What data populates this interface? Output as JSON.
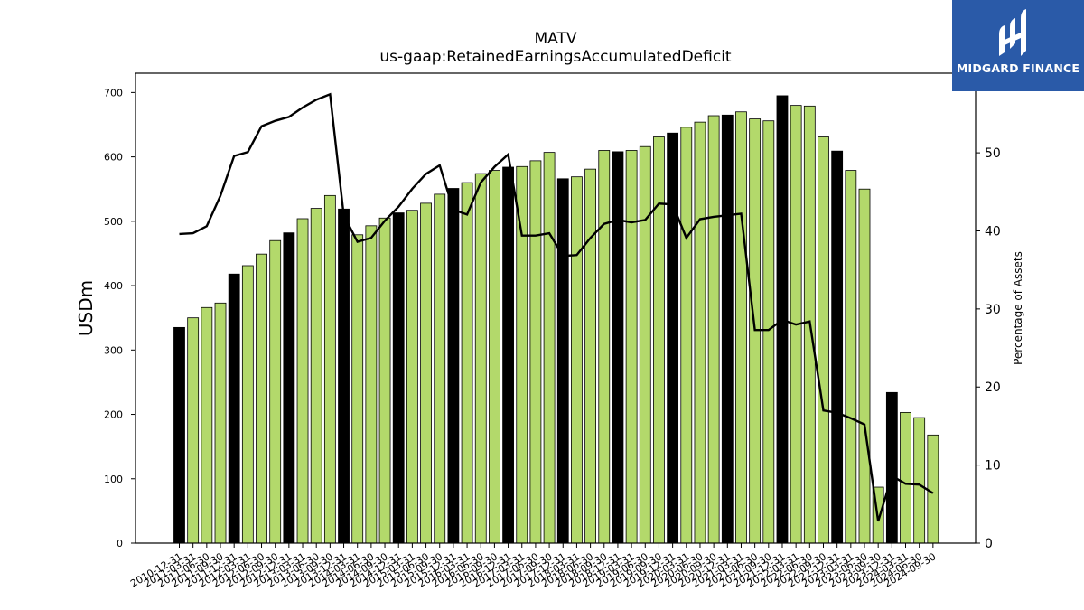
{
  "chart_data": {
    "type": "bar",
    "title": "MATV",
    "subtitle": "us-gaap:RetainedEarningsAccumulatedDeficit",
    "ylabel": "USDm",
    "y2label": "Percentage of Assets",
    "ylim": [
      0,
      730
    ],
    "y2lim": [
      0,
      60.2
    ],
    "yticks": [
      0,
      100,
      200,
      300,
      400,
      500,
      600,
      700
    ],
    "y2ticks": [
      0,
      10,
      20,
      30,
      40,
      50
    ],
    "categories": [
      "2010-12-31",
      "2011-03-31",
      "2011-06-30",
      "2011-09-30",
      "2011-12-31",
      "2012-03-31",
      "2012-06-30",
      "2012-09-30",
      "2012-12-31",
      "2013-03-31",
      "2013-06-30",
      "2013-09-30",
      "2013-12-31",
      "2014-03-31",
      "2014-06-30",
      "2014-09-30",
      "2014-12-31",
      "2015-03-31",
      "2015-06-30",
      "2015-09-30",
      "2015-12-31",
      "2016-03-31",
      "2016-06-30",
      "2016-09-30",
      "2016-12-31",
      "2017-03-31",
      "2017-06-30",
      "2017-09-30",
      "2017-12-31",
      "2018-03-31",
      "2018-06-30",
      "2018-09-30",
      "2018-12-31",
      "2019-03-31",
      "2019-06-30",
      "2019-09-30",
      "2019-12-31",
      "2020-03-31",
      "2020-06-30",
      "2020-09-30",
      "2020-12-31",
      "2021-03-31",
      "2021-06-30",
      "2021-09-30",
      "2021-12-31",
      "2022-03-31",
      "2022-06-30",
      "2022-09-30",
      "2022-12-31",
      "2023-03-31",
      "2023-06-30",
      "2023-09-30",
      "2023-12-31",
      "2024-03-31",
      "2024-06-30",
      "2024-09-30"
    ],
    "series": [
      {
        "type": "bar",
        "values": [
          335,
          350,
          366,
          373,
          418,
          431,
          449,
          470,
          482,
          504,
          520,
          540,
          519,
          479,
          493,
          505,
          513,
          517,
          528,
          542,
          551,
          560,
          574,
          579,
          584,
          585,
          594,
          607,
          566,
          569,
          581,
          610,
          608,
          610,
          616,
          631,
          637,
          646,
          654,
          664,
          665,
          670,
          659,
          656,
          695,
          680,
          679,
          631,
          609,
          579,
          550,
          87,
          234,
          203,
          195,
          168
        ]
      },
      {
        "type": "line",
        "axis": "right",
        "values": [
          39.6,
          39.7,
          40.6,
          44.5,
          49.6,
          50.1,
          53.4,
          54.1,
          54.6,
          55.8,
          56.8,
          57.5,
          42.0,
          38.6,
          39.1,
          41.3,
          43.1,
          45.4,
          47.3,
          48.4,
          42.7,
          42.1,
          46.2,
          48.2,
          49.8,
          39.4,
          39.4,
          39.7,
          36.8,
          36.9,
          39.1,
          40.9,
          41.4,
          41.1,
          41.4,
          43.5,
          43.4,
          39.1,
          41.5,
          41.8,
          42.0,
          42.2,
          27.3,
          27.3,
          28.6,
          28.0,
          28.4,
          17.0,
          16.7,
          16.0,
          15.2,
          2.8,
          8.6,
          7.6,
          7.5,
          6.4
        ]
      }
    ],
    "bar_colors": {
      "quarter": "#b3d96b",
      "year_end": "#000000"
    },
    "line_color": "#000000",
    "grid": false,
    "legend": "none"
  },
  "logo": {
    "text": "MIDGARD FINANCE",
    "bg": "#2a5aa8"
  }
}
